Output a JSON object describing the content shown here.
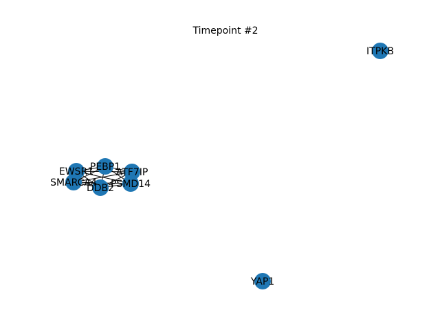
{
  "title": "Timepoint #2",
  "node_color": "#1f77b4",
  "edge_color": "#000000",
  "nodes": [
    {
      "id": "PEBP1",
      "label": "PEBP1"
    },
    {
      "id": "EWSR1",
      "label": "EWSR1"
    },
    {
      "id": "ATF7IP",
      "label": "ATF7IP"
    },
    {
      "id": "SMARCA4",
      "label": "SMARCA4"
    },
    {
      "id": "PSMD14",
      "label": "PSMD14"
    },
    {
      "id": "DDB2",
      "label": "DDB2"
    },
    {
      "id": "ITPKB",
      "label": "ITPKB"
    },
    {
      "id": "YAP1",
      "label": "YAP1"
    }
  ],
  "edges": [
    [
      "PEBP1",
      "EWSR1"
    ],
    [
      "PEBP1",
      "ATF7IP"
    ],
    [
      "PEBP1",
      "SMARCA4"
    ],
    [
      "PEBP1",
      "PSMD14"
    ],
    [
      "PEBP1",
      "DDB2"
    ],
    [
      "EWSR1",
      "ATF7IP"
    ],
    [
      "EWSR1",
      "SMARCA4"
    ],
    [
      "EWSR1",
      "PSMD14"
    ],
    [
      "EWSR1",
      "DDB2"
    ],
    [
      "ATF7IP",
      "SMARCA4"
    ],
    [
      "ATF7IP",
      "PSMD14"
    ],
    [
      "ATF7IP",
      "DDB2"
    ],
    [
      "SMARCA4",
      "PSMD14"
    ],
    [
      "SMARCA4",
      "DDB2"
    ],
    [
      "PSMD14",
      "DDB2"
    ]
  ]
}
